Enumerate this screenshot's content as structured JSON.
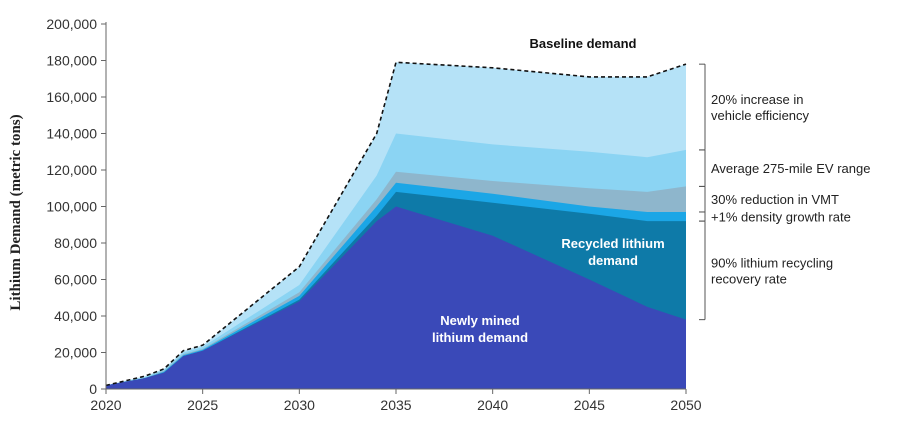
{
  "chart_data": {
    "type": "area",
    "title": "",
    "xlabel": "",
    "ylabel": "Lithium Demand (metric tons)",
    "xlim": [
      2020,
      2050
    ],
    "ylim": [
      0,
      200000
    ],
    "x": [
      2020,
      2022,
      2023,
      2024,
      2025,
      2030,
      2034,
      2035,
      2040,
      2045,
      2048,
      2050
    ],
    "x_ticks": [
      "2020",
      "2025",
      "2030",
      "2035",
      "2040",
      "2045",
      "2050"
    ],
    "y_ticks": [
      "0",
      "20,000",
      "40,000",
      "60,000",
      "80,000",
      "100,000",
      "120,000",
      "140,000",
      "160,000",
      "180,000",
      "200,000"
    ],
    "baseline": {
      "name": "Baseline demand",
      "values": [
        2000,
        7000,
        11000,
        21000,
        24000,
        67000,
        140000,
        179000,
        176000,
        171000,
        171000,
        178000
      ]
    },
    "series": [
      {
        "name": "Newly mined lithium demand",
        "color": "#3a49b8",
        "values": [
          2000,
          6000,
          9000,
          18000,
          21000,
          48000,
          92000,
          100000,
          84000,
          60000,
          45000,
          38000
        ]
      },
      {
        "name": "Recycled lithium demand",
        "color": "#0e7aa8",
        "values": [
          2000,
          6000,
          9000,
          18000,
          21000,
          49000,
          95000,
          108000,
          102000,
          96000,
          92000,
          92000
        ]
      },
      {
        "name": "+1% density growth rate",
        "color": "#1ba6e6",
        "values": [
          2000,
          6000,
          9500,
          18500,
          21500,
          51000,
          100000,
          113000,
          107000,
          100000,
          97000,
          97000
        ]
      },
      {
        "name": "30% reduction in VMT",
        "color": "#8eb6cc",
        "values": [
          2000,
          6000,
          10000,
          19000,
          22000,
          53000,
          104000,
          119000,
          114000,
          110000,
          108000,
          111000
        ]
      },
      {
        "name": "Average 275-mile EV range",
        "color": "#8bd4f3",
        "values": [
          2000,
          6500,
          10500,
          20000,
          23000,
          57000,
          117000,
          140000,
          134000,
          130000,
          127000,
          131000
        ]
      },
      {
        "name": "20% increase in vehicle efficiency",
        "color": "#b5e2f7",
        "values": [
          2000,
          7000,
          11000,
          21000,
          24000,
          67000,
          140000,
          179000,
          176000,
          171000,
          171000,
          178000
        ]
      }
    ],
    "annotations": [
      {
        "text_lines": [
          "20% increase in",
          "vehicle efficiency"
        ],
        "range": [
          131000,
          178000
        ]
      },
      {
        "text_lines": [
          "Average 275-mile EV range"
        ],
        "range": [
          111000,
          131000
        ]
      },
      {
        "text_lines": [
          "30% reduction in VMT"
        ],
        "range": [
          97000,
          111000
        ]
      },
      {
        "text_lines": [
          "+1% density growth rate"
        ],
        "range": [
          92000,
          97000
        ]
      },
      {
        "text_lines": [
          "90% lithium recycling",
          "recovery rate"
        ],
        "range": [
          38000,
          92000
        ]
      }
    ],
    "inner_labels": {
      "newly_mined": [
        "Newly mined",
        "lithium demand"
      ],
      "recycled": [
        "Recycled lithium",
        "demand"
      ]
    }
  }
}
